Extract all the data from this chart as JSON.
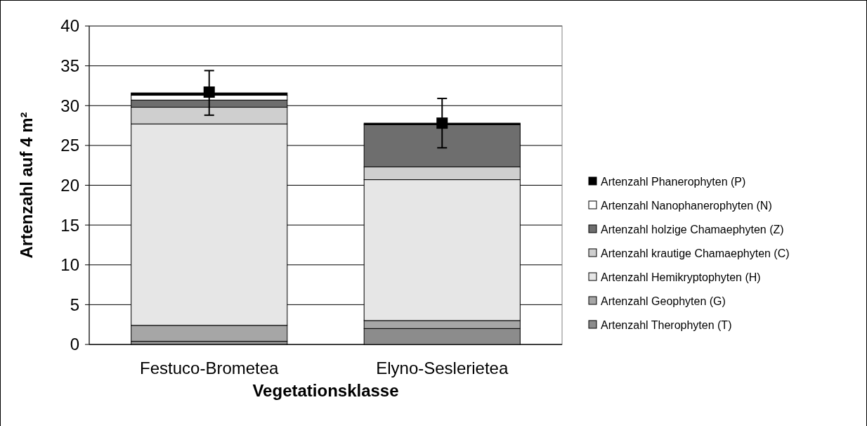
{
  "chart_data": {
    "type": "bar",
    "stacked": true,
    "xlabel": "Vegetationsklasse",
    "ylabel": "Artenzahl auf 4 m²",
    "categories": [
      "Festuco-Brometea",
      "Elyno-Seslerietea"
    ],
    "ylim": [
      0,
      40
    ],
    "yticks": [
      0,
      5,
      10,
      15,
      20,
      25,
      30,
      35,
      40
    ],
    "grid": "y",
    "legend": "right",
    "series": [
      {
        "name": "Artenzahl Therophyten (T)",
        "color": "#8c8c8c",
        "values": [
          0.4,
          2.0
        ]
      },
      {
        "name": "Artenzahl Geophyten (G)",
        "color": "#a6a6a6",
        "values": [
          2.0,
          1.0
        ]
      },
      {
        "name": "Artenzahl Hemikryptophyten (H)",
        "color": "#e6e6e6",
        "values": [
          25.3,
          17.7
        ]
      },
      {
        "name": "Artenzahl krautige Chamaephyten (C)",
        "color": "#cfcfcf",
        "values": [
          2.1,
          1.6
        ]
      },
      {
        "name": "Artenzahl holzige Chamaephyten (Z)",
        "color": "#6e6e6e",
        "values": [
          0.9,
          5.3
        ]
      },
      {
        "name": "Artenzahl Nanophanerophyten (N)",
        "color": "#ffffff",
        "values": [
          0.6,
          0
        ]
      },
      {
        "name": "Artenzahl Phanerophyten (P)",
        "color": "#000000",
        "values": [
          0.3,
          0.2
        ]
      },
      {
        "type": "scatter",
        "marker": "square",
        "color": "#000000",
        "x": [
          "Festuco-Brometea",
          "Elyno-Seslerietea"
        ],
        "values": [
          31.7,
          27.8
        ],
        "errors": [
          [
            28.8,
            34.4
          ],
          [
            24.7,
            30.9
          ]
        ]
      }
    ]
  }
}
